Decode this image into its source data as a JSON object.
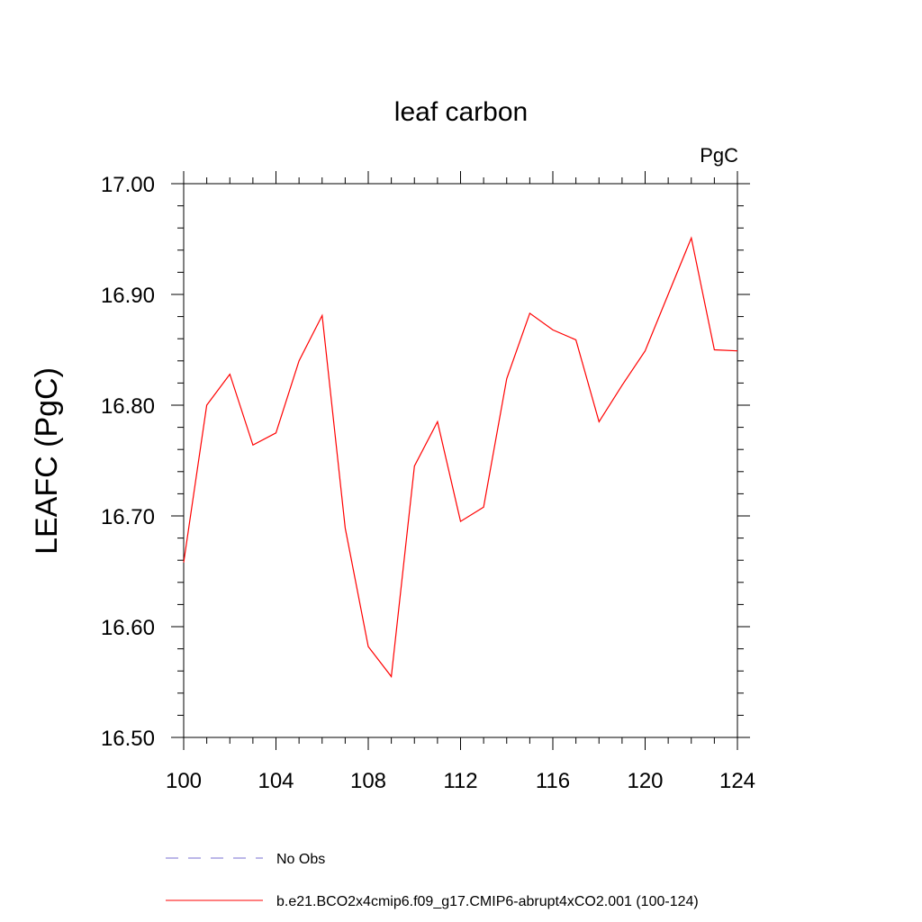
{
  "chart_data": {
    "type": "line",
    "title": "leaf carbon",
    "units": "PgC",
    "ylabel": "LEAFC  (PgC)",
    "xlabel": "",
    "xlim": [
      100,
      124
    ],
    "ylim": [
      16.5,
      17.0
    ],
    "xticks": [
      100,
      104,
      108,
      112,
      116,
      120,
      124
    ],
    "xtick_labels": [
      "100",
      "104",
      "108",
      "112",
      "116",
      "120",
      "124"
    ],
    "yticks": [
      16.5,
      16.6,
      16.7,
      16.8,
      16.9,
      17.0
    ],
    "ytick_labels": [
      "16.50",
      "16.60",
      "16.70",
      "16.80",
      "16.90",
      "17.00"
    ],
    "grid": false,
    "legend_position": "bottom",
    "series": [
      {
        "name": "b.e21.BCO2x4cmip6.f09_g17.CMIP6-abrupt4xCO2.001 (100-124)",
        "color": "#ff0000",
        "dash": "solid",
        "x": [
          100,
          101,
          102,
          103,
          104,
          105,
          106,
          107,
          108,
          109,
          110,
          111,
          112,
          113,
          114,
          115,
          116,
          117,
          118,
          119,
          120,
          121,
          122,
          123,
          124
        ],
        "y": [
          16.658,
          16.8,
          16.828,
          16.764,
          16.775,
          16.84,
          16.881,
          16.689,
          16.582,
          16.555,
          16.745,
          16.785,
          16.695,
          16.708,
          16.824,
          16.883,
          16.868,
          16.859,
          16.785,
          16.818,
          16.849,
          16.9,
          16.951,
          16.85,
          16.849
        ]
      }
    ],
    "legend": [
      {
        "label": "No Obs",
        "color": "#7a6fd0",
        "dash": "dashed"
      },
      {
        "label": "b.e21.BCO2x4cmip6.f09_g17.CMIP6-abrupt4xCO2.001 (100-124)",
        "color": "#ff0000",
        "dash": "solid"
      }
    ]
  }
}
